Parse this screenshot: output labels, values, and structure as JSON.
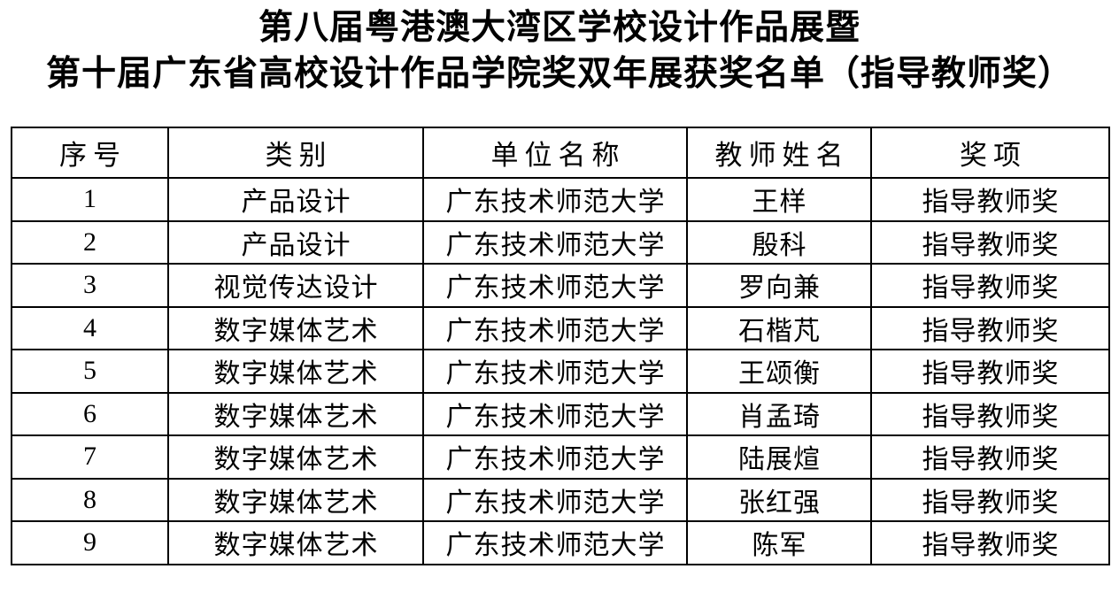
{
  "title": {
    "line1": "第八届粤港澳大湾区学校设计作品展暨",
    "line2": "第十届广东省高校设计作品学院奖双年展获奖名单（指导教师奖）"
  },
  "table": {
    "headers": [
      "序号",
      "类别",
      "单位名称",
      "教师姓名",
      "奖项"
    ],
    "rows": [
      [
        "1",
        "产品设计",
        "广东技术师范大学",
        "王样",
        "指导教师奖"
      ],
      [
        "2",
        "产品设计",
        "广东技术师范大学",
        "殷科",
        "指导教师奖"
      ],
      [
        "3",
        "视觉传达设计",
        "广东技术师范大学",
        "罗向兼",
        "指导教师奖"
      ],
      [
        "4",
        "数字媒体艺术",
        "广东技术师范大学",
        "石楷芃",
        "指导教师奖"
      ],
      [
        "5",
        "数字媒体艺术",
        "广东技术师范大学",
        "王颂衡",
        "指导教师奖"
      ],
      [
        "6",
        "数字媒体艺术",
        "广东技术师范大学",
        "肖孟琦",
        "指导教师奖"
      ],
      [
        "7",
        "数字媒体艺术",
        "广东技术师范大学",
        "陆展煊",
        "指导教师奖"
      ],
      [
        "8",
        "数字媒体艺术",
        "广东技术师范大学",
        "张红强",
        "指导教师奖"
      ],
      [
        "9",
        "数字媒体艺术",
        "广东技术师范大学",
        "陈军",
        "指导教师奖"
      ]
    ]
  },
  "colors": {
    "text": "#000000",
    "background": "#ffffff",
    "border": "#000000"
  }
}
